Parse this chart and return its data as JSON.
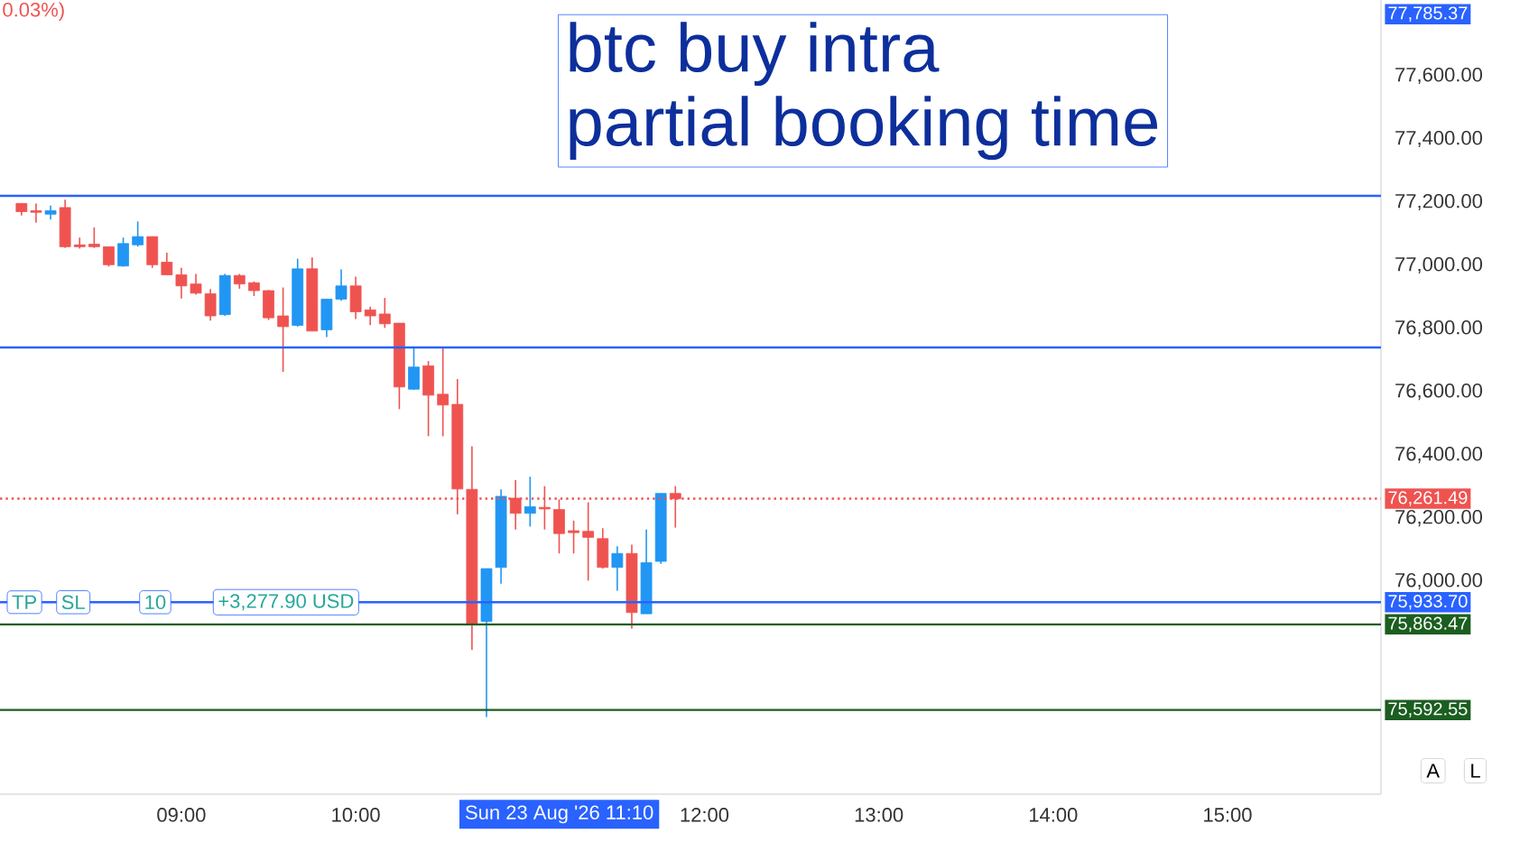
{
  "chart_data": {
    "type": "candlestick",
    "title": "btc buy intra",
    "subtitle": "partial booking time",
    "x": [
      8.0833,
      8.1667,
      8.25,
      8.3333,
      8.4167,
      8.5,
      8.5833,
      8.6667,
      8.75,
      8.8333,
      8.9167,
      9.0,
      9.0833,
      9.1667,
      9.25,
      9.3333,
      9.4167,
      9.5,
      9.5833,
      9.6667,
      9.75,
      9.8333,
      9.9167,
      10.0,
      10.0833,
      10.1667,
      10.25,
      10.3333,
      10.4167,
      10.5,
      10.5833,
      10.6667,
      10.75,
      10.8333,
      10.9167,
      11.0,
      11.0833,
      11.1667,
      11.25,
      11.3333,
      11.4167,
      11.5,
      11.5833,
      11.6667,
      11.75,
      11.8333
    ],
    "ohlc": [
      [
        77196,
        77196,
        77158,
        77170
      ],
      [
        77173,
        77196,
        77135,
        77168
      ],
      [
        77162,
        77189,
        77145,
        77173
      ],
      [
        77183,
        77208,
        77055,
        77059
      ],
      [
        77065,
        77088,
        77053,
        77059
      ],
      [
        77067,
        77120,
        77055,
        77059
      ],
      [
        77059,
        77059,
        76996,
        77002
      ],
      [
        76998,
        77088,
        76996,
        77069
      ],
      [
        77065,
        77139,
        77059,
        77091
      ],
      [
        77091,
        77091,
        76992,
        77002
      ],
      [
        77010,
        77040,
        76970,
        76970
      ],
      [
        76970,
        76992,
        76895,
        76935
      ],
      [
        76941,
        76973,
        76907,
        76912
      ],
      [
        76910,
        76925,
        76825,
        76840
      ],
      [
        76844,
        76973,
        76840,
        76968
      ],
      [
        76968,
        76973,
        76926,
        76941
      ],
      [
        76945,
        76949,
        76903,
        76920
      ],
      [
        76920,
        76922,
        76827,
        76834
      ],
      [
        76840,
        76930,
        76663,
        76806
      ],
      [
        76810,
        77021,
        76806,
        76989
      ],
      [
        76989,
        77025,
        76792,
        76792
      ],
      [
        76796,
        76893,
        76773,
        76893
      ],
      [
        76893,
        76987,
        76888,
        76935
      ],
      [
        76935,
        76964,
        76830,
        76853
      ],
      [
        76859,
        76869,
        76811,
        76840
      ],
      [
        76846,
        76897,
        76802,
        76815
      ],
      [
        76817,
        76817,
        76545,
        76615
      ],
      [
        76608,
        76739,
        76606,
        76678
      ],
      [
        76682,
        76697,
        76459,
        76589
      ],
      [
        76592,
        76739,
        76459,
        76558
      ],
      [
        76560,
        76640,
        76212,
        76292
      ],
      [
        76291,
        76427,
        75783,
        75865
      ],
      [
        75873,
        76040,
        75570,
        76040
      ],
      [
        76044,
        76291,
        75992,
        76269
      ],
      [
        76263,
        76320,
        76164,
        76215
      ],
      [
        76215,
        76331,
        76173,
        76236
      ],
      [
        76234,
        76301,
        76164,
        76229
      ],
      [
        76227,
        76259,
        76088,
        76151
      ],
      [
        76160,
        76192,
        76088,
        76154
      ],
      [
        76158,
        76250,
        76002,
        76139
      ],
      [
        76135,
        76168,
        76040,
        76044
      ],
      [
        76044,
        76111,
        75970,
        76088
      ],
      [
        76088,
        76116,
        75850,
        75901
      ],
      [
        75897,
        76164,
        75897,
        76059
      ],
      [
        76063,
        76278,
        76055,
        76278
      ],
      [
        76278,
        76301,
        76170,
        76261
      ]
    ],
    "colors": [
      "#ef5350",
      "#ef5350",
      "#2196f3",
      "#ef5350",
      "#ef5350",
      "#ef5350",
      "#ef5350",
      "#2196f3",
      "#2196f3",
      "#ef5350",
      "#ef5350",
      "#ef5350",
      "#ef5350",
      "#ef5350",
      "#2196f3",
      "#ef5350",
      "#ef5350",
      "#ef5350",
      "#ef5350",
      "#2196f3",
      "#ef5350",
      "#2196f3",
      "#2196f3",
      "#ef5350",
      "#ef5350",
      "#ef5350",
      "#ef5350",
      "#2196f3",
      "#ef5350",
      "#ef5350",
      "#ef5350",
      "#ef5350",
      "#2196f3",
      "#2196f3",
      "#ef5350",
      "#2196f3",
      "#ef5350",
      "#ef5350",
      "#ef5350",
      "#ef5350",
      "#ef5350",
      "#2196f3",
      "#ef5350",
      "#2196f3",
      "#2196f3",
      "#ef5350"
    ],
    "xlim": [
      7.96,
      15.88
    ],
    "ylim": [
      75326,
      77840
    ],
    "xticks": [
      {
        "value": 9,
        "label": "09:00"
      },
      {
        "value": 10,
        "label": "10:00"
      },
      {
        "value": 12,
        "label": "12:00"
      },
      {
        "value": 13,
        "label": "13:00"
      },
      {
        "value": 14,
        "label": "14:00"
      },
      {
        "value": 15,
        "label": "15:00"
      }
    ],
    "yticks": [
      {
        "value": 76000,
        "label": "76,000.00"
      },
      {
        "value": 76200,
        "label": "76,200.00"
      },
      {
        "value": 76400,
        "label": "76,400.00"
      },
      {
        "value": 76600,
        "label": "76,600.00"
      },
      {
        "value": 76800,
        "label": "76,800.00"
      },
      {
        "value": 77000,
        "label": "77,000.00"
      },
      {
        "value": 77200,
        "label": "77,200.00"
      },
      {
        "value": 77400,
        "label": "77,400.00"
      },
      {
        "value": 77600,
        "label": "77,600.00"
      }
    ],
    "ref_lines": [
      {
        "axis": "y",
        "value": 77220,
        "label": null,
        "color": "#2962ff",
        "line_style": "solid"
      },
      {
        "axis": "y",
        "value": 76740,
        "label": null,
        "color": "#2962ff",
        "line_style": "solid"
      },
      {
        "axis": "y",
        "value": 76261.49,
        "label": "76,261.49",
        "color": "#ef5350",
        "line_style": "dotted"
      },
      {
        "axis": "y",
        "value": 75933.7,
        "label": "75,933.70",
        "color": "#2962ff",
        "line_style": "solid"
      },
      {
        "axis": "y",
        "value": 75863.47,
        "label": "75,863.47",
        "color": "#1b5e20",
        "line_style": "solid"
      },
      {
        "axis": "y",
        "value": 75592.55,
        "label": "75,592.55",
        "color": "#1b5e20",
        "line_style": "solid"
      }
    ],
    "annotations": [
      "0.03%)",
      "77,785.37",
      "Sun 23 Aug '26 11:10",
      {
        "text": "TP",
        "x": 8.1,
        "y": 75933.7
      },
      {
        "text": "SL",
        "x": 8.38,
        "y": 75933.7
      },
      {
        "text": "10",
        "x": 8.85,
        "y": 75933.7
      },
      {
        "text": "+3,277.90 USD",
        "x": 9.6,
        "y": 75933.7
      },
      "A",
      "L"
    ]
  }
}
